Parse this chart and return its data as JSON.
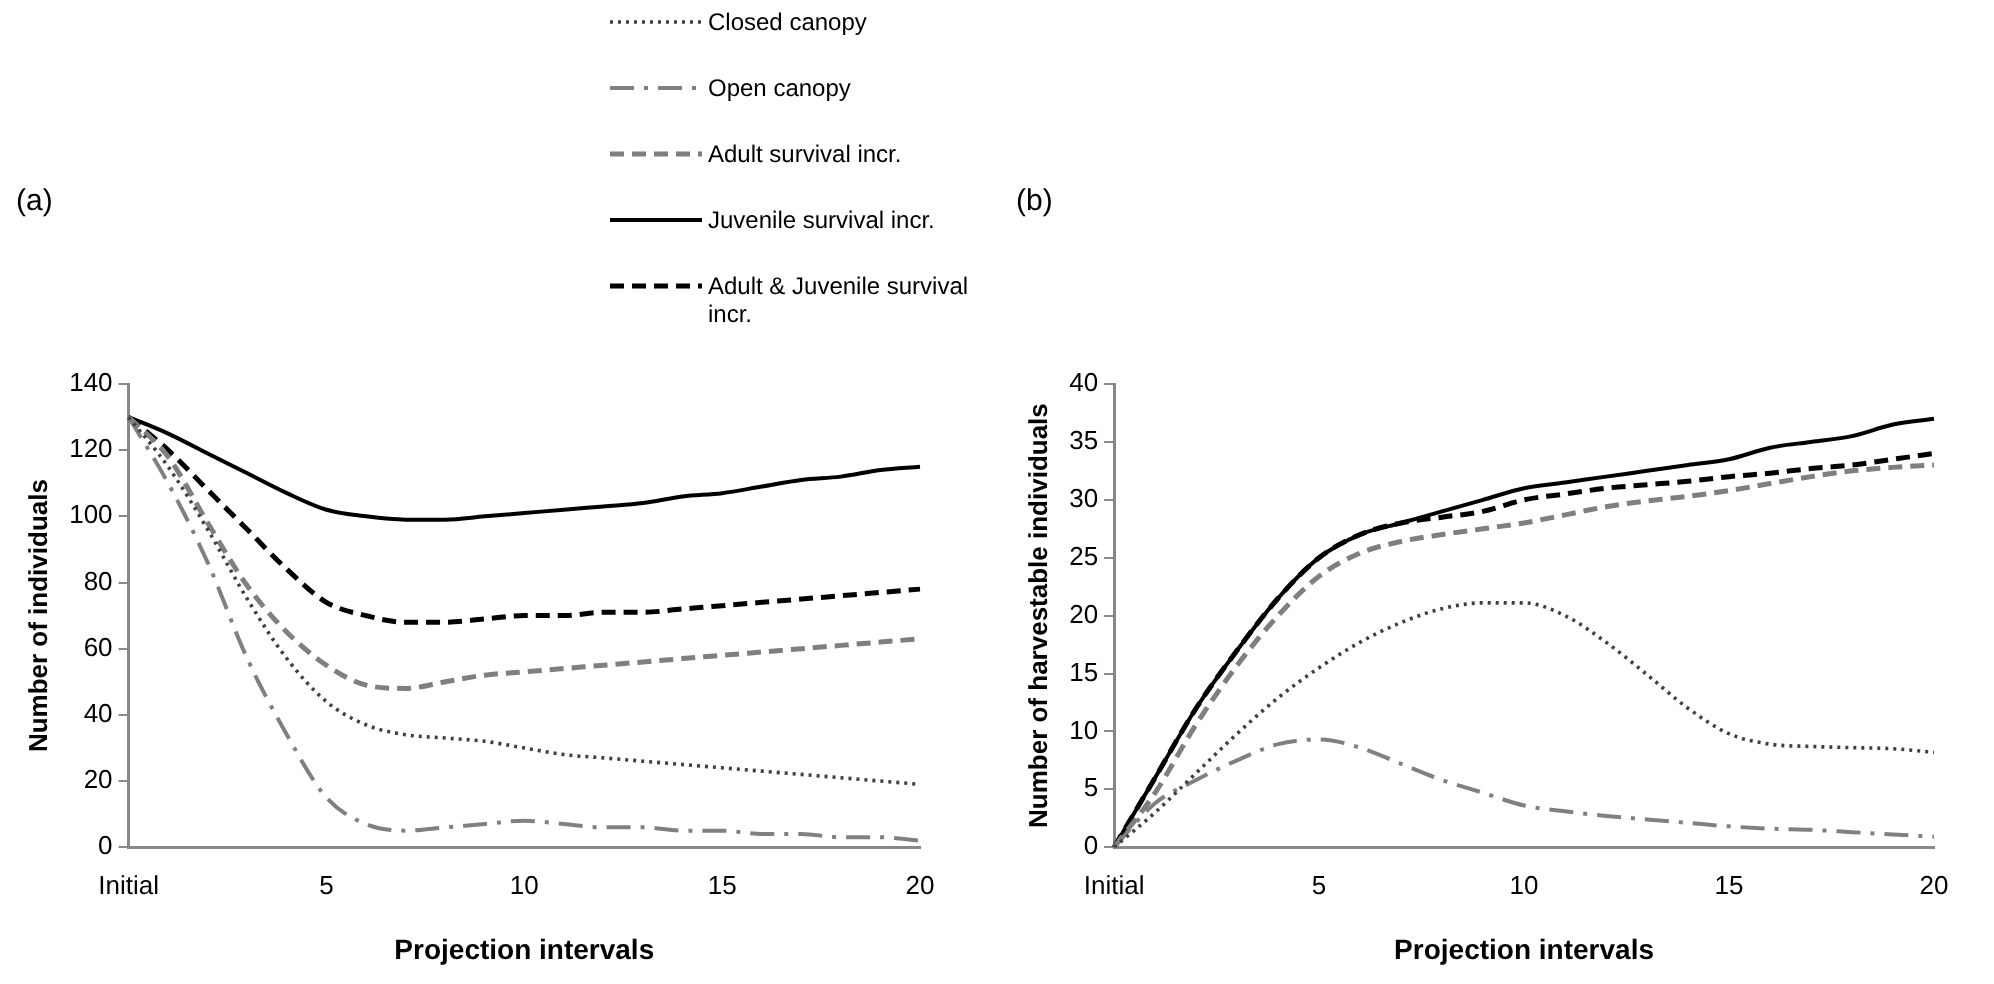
{
  "chart_data": [
    {
      "type": "line",
      "title": "(a)",
      "xlabel": "Projection intervals",
      "ylabel": "Number of individuals",
      "categories": [
        "Initial",
        null,
        null,
        null,
        null,
        "5",
        null,
        null,
        null,
        null,
        "10",
        null,
        null,
        null,
        null,
        "15",
        null,
        null,
        null,
        null,
        "20"
      ],
      "ylim": [
        0,
        140
      ],
      "yticks": [
        0,
        20,
        40,
        60,
        80,
        100,
        120,
        140
      ],
      "grid": false,
      "legend": "top",
      "marker": "none",
      "series": [
        {
          "name": "Closed canopy",
          "color": "#404040",
          "line_style": "dotted",
          "values": [
            130,
            115,
            96,
            75,
            57,
            44,
            37,
            34,
            33,
            32,
            30,
            28,
            27,
            26,
            25,
            24,
            23,
            22,
            21,
            20,
            19
          ]
        },
        {
          "name": "Open canopy",
          "color": "#808080",
          "line_style": "dashdot",
          "values": [
            130,
            110,
            86,
            57,
            34,
            15,
            7,
            5,
            6,
            7,
            8,
            7,
            6,
            6,
            5,
            5,
            4,
            4,
            3,
            3,
            2
          ]
        },
        {
          "name": "Adult survival incr.",
          "color": "#7f7f7f",
          "line_style": "dashed",
          "values": [
            130,
            118,
            98,
            79,
            65,
            55,
            49,
            48,
            50,
            52,
            53,
            54,
            55,
            56,
            57,
            58,
            59,
            60,
            61,
            62,
            63
          ]
        },
        {
          "name": "Juvenile survival incr.",
          "color": "#000000",
          "line_style": "solid",
          "values": [
            130,
            125,
            119,
            113,
            107,
            102,
            100,
            99,
            99,
            100,
            101,
            102,
            103,
            104,
            106,
            107,
            109,
            111,
            112,
            114,
            115
          ]
        },
        {
          "name": "Adult & Juvenile survival incr.",
          "color": "#000000",
          "line_style": "dashed",
          "values": [
            130,
            120,
            108,
            96,
            84,
            74,
            70,
            68,
            68,
            69,
            70,
            70,
            71,
            71,
            72,
            73,
            74,
            75,
            76,
            77,
            78
          ]
        }
      ]
    },
    {
      "type": "line",
      "title": "(b)",
      "xlabel": "Projection intervals",
      "ylabel": "Number of harvestable individuals",
      "categories": [
        "Initial",
        null,
        null,
        null,
        null,
        "5",
        null,
        null,
        null,
        null,
        "10",
        null,
        null,
        null,
        null,
        "15",
        null,
        null,
        null,
        null,
        "20"
      ],
      "ylim": [
        0,
        40
      ],
      "yticks": [
        0,
        5,
        10,
        15,
        20,
        25,
        30,
        35,
        40
      ],
      "grid": false,
      "marker": "none",
      "series": [
        {
          "color": "#404040",
          "line_style": "dotted",
          "values": [
            0,
            3,
            6.4,
            9.8,
            12.9,
            15.5,
            17.7,
            19.4,
            20.6,
            21.1,
            21.1,
            20,
            17.7,
            14.9,
            12,
            9.8,
            8.9,
            8.7,
            8.6,
            8.5,
            8.2
          ]
        },
        {
          "color": "#808080",
          "line_style": "dashdot",
          "values": [
            0,
            3.8,
            5.8,
            7.5,
            8.9,
            9.3,
            8.6,
            7.2,
            5.8,
            4.7,
            3.6,
            3.1,
            2.7,
            2.4,
            2.1,
            1.8,
            1.6,
            1.5,
            1.3,
            1.1,
            0.9
          ]
        },
        {
          "color": "#7f7f7f",
          "line_style": "dashed",
          "values": [
            0,
            4.7,
            10.6,
            15.7,
            20,
            23.4,
            25.4,
            26.4,
            27,
            27.5,
            28,
            28.7,
            29.4,
            29.9,
            30.3,
            30.8,
            31.4,
            32,
            32.5,
            32.8,
            33
          ]
        },
        {
          "color": "#000000",
          "line_style": "solid",
          "values": [
            0,
            6,
            12,
            17,
            21.5,
            25,
            27,
            28,
            29,
            30,
            31,
            31.5,
            32,
            32.5,
            33,
            33.5,
            34.5,
            35,
            35.5,
            36.5,
            37
          ]
        },
        {
          "color": "#000000",
          "line_style": "dashed",
          "values": [
            0,
            6,
            12,
            17,
            21.5,
            25,
            27,
            28,
            28.5,
            29,
            30,
            30.5,
            31,
            31.3,
            31.6,
            32,
            32.3,
            32.7,
            33,
            33.5,
            34
          ]
        }
      ]
    }
  ]
}
